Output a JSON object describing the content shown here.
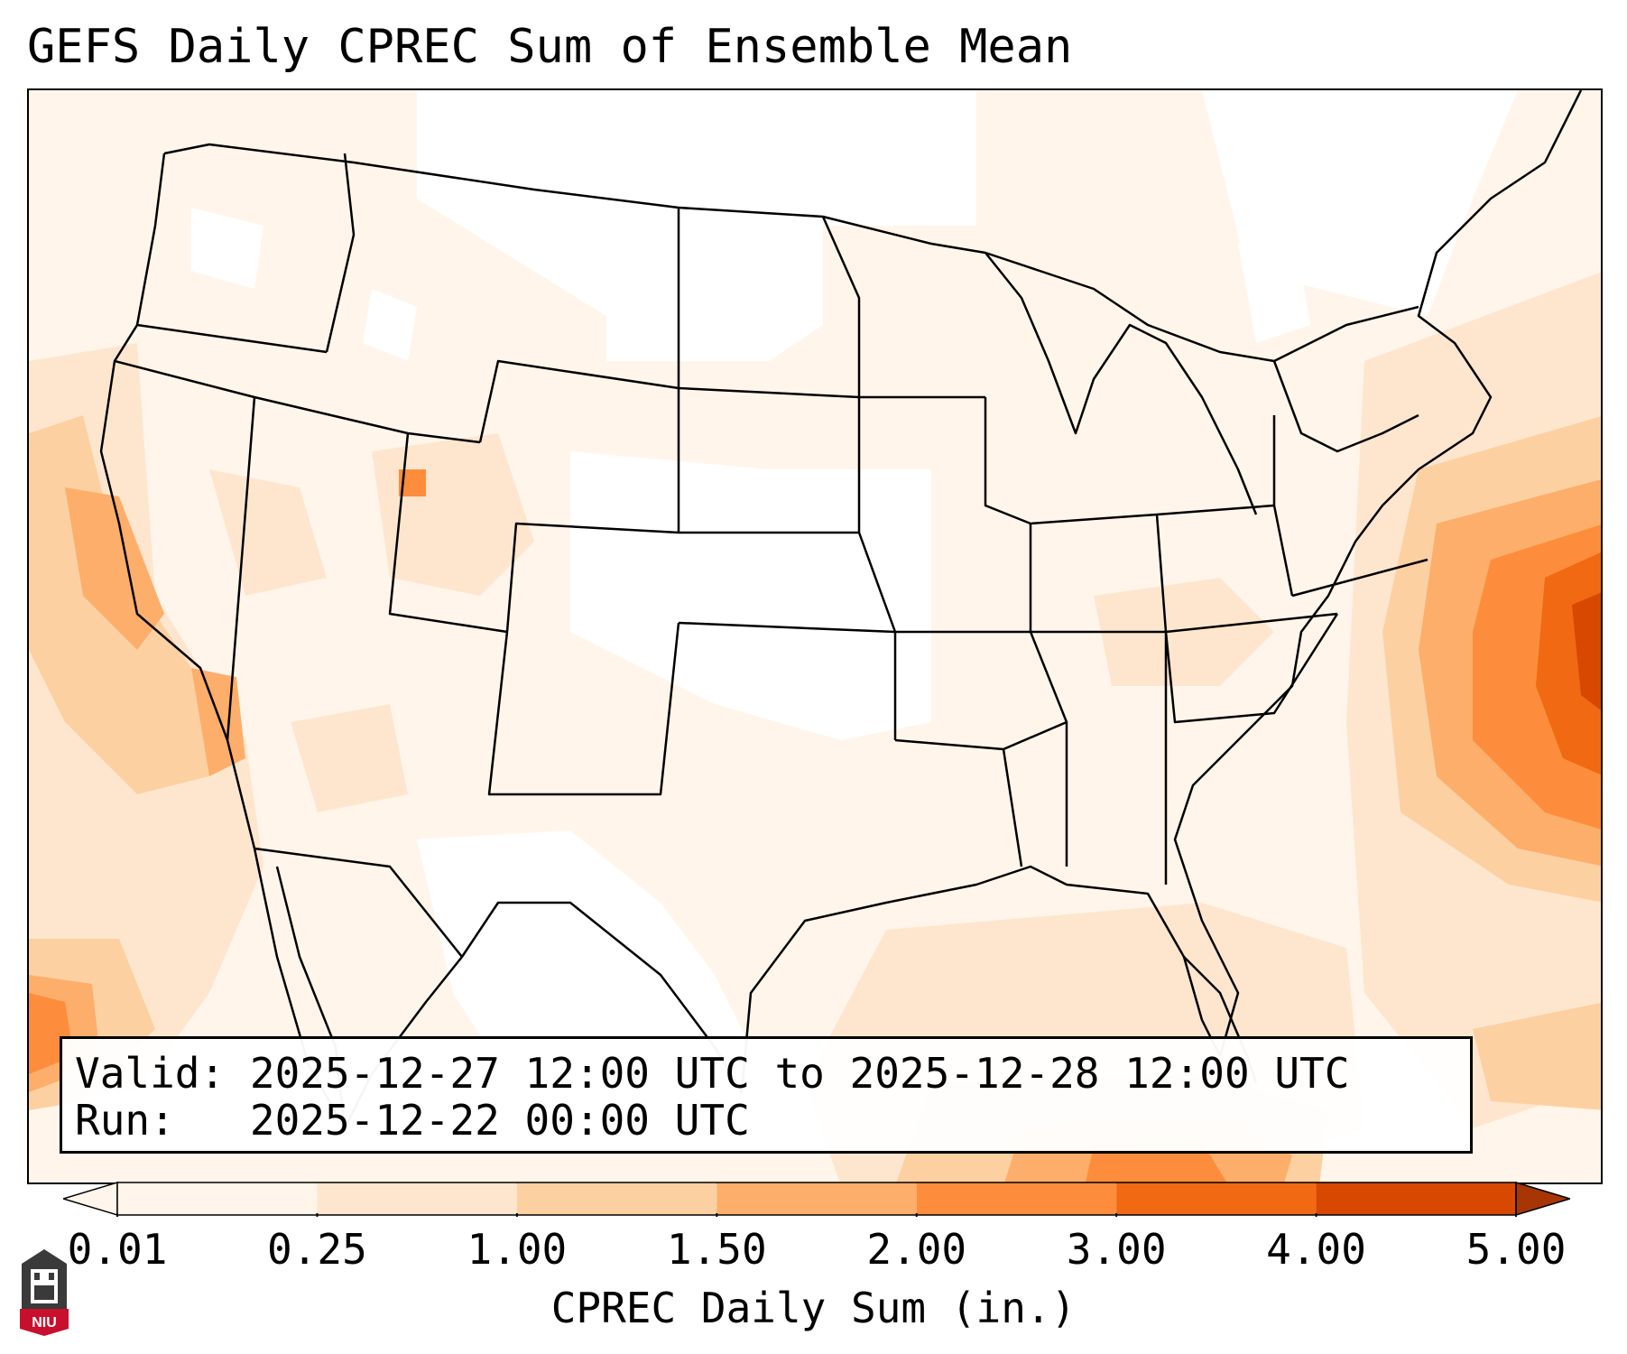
{
  "title": "GEFS Daily CPREC Sum of Ensemble Mean",
  "info": {
    "valid_label": "Valid:",
    "valid_value": "2025-12-27 12:00 UTC to 2025-12-28 12:00 UTC",
    "run_label": "Run:",
    "run_value": "2025-12-22 00:00 UTC"
  },
  "colorbar": {
    "label": "CPREC Daily Sum (in.)",
    "ticks": [
      "0.01",
      "0.25",
      "1.00",
      "1.50",
      "2.00",
      "3.00",
      "4.00",
      "5.00"
    ],
    "colors": [
      "#fff5eb",
      "#fee6ce",
      "#fdd0a2",
      "#fdae6b",
      "#fd8d3c",
      "#f16913",
      "#d94801",
      "#a63603"
    ],
    "extend": "both"
  },
  "logo": {
    "text": "NIU",
    "color": "#c8102e"
  },
  "colors": {
    "land_border": "#000000",
    "background": "#ffffff"
  }
}
